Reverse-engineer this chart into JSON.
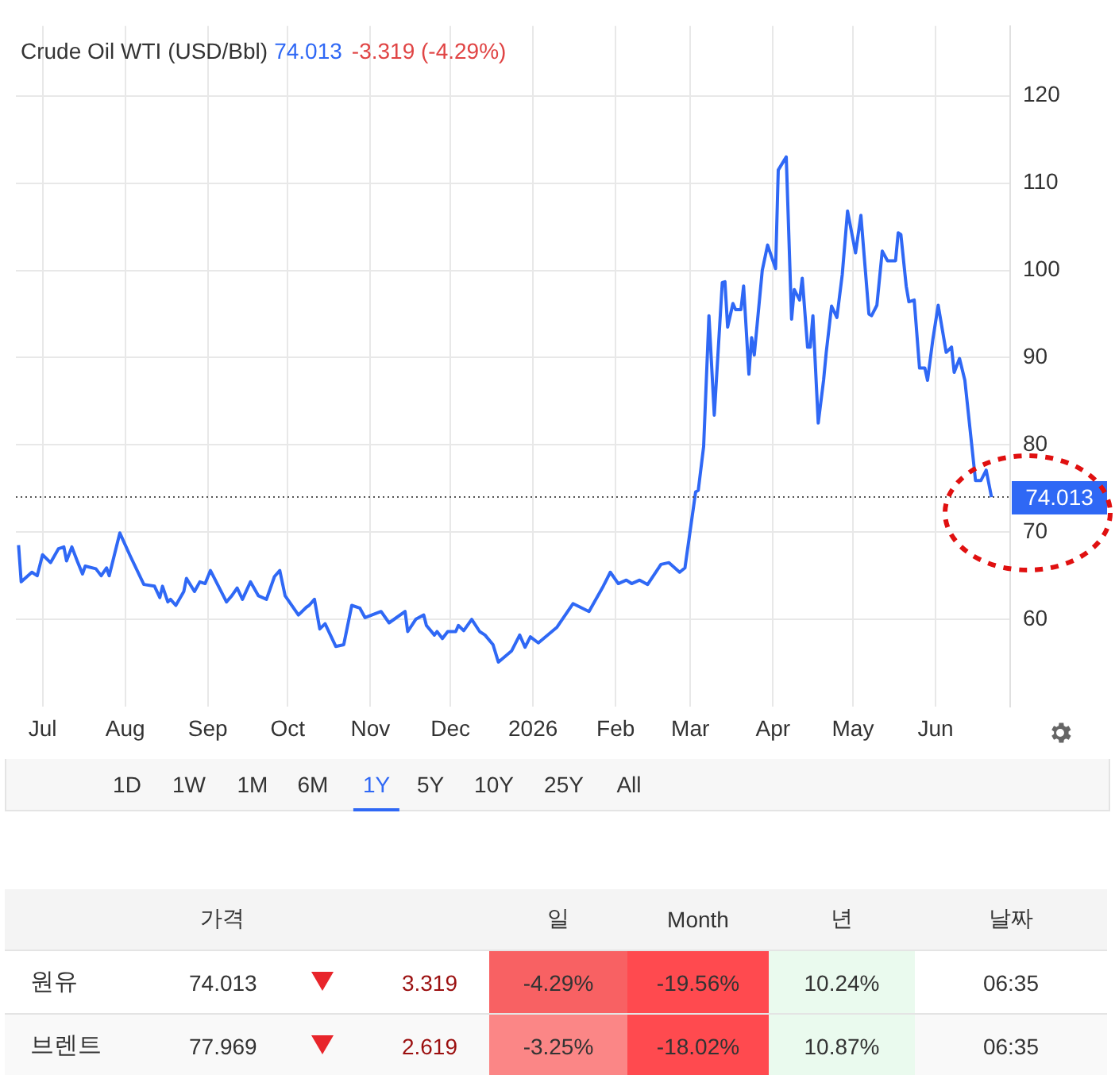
{
  "chart_data": {
    "type": "line",
    "title": "Crude Oil WTI (USD/Bbl)",
    "annotations": [
      "74.013",
      "-3.319 (-4.29%)",
      "1D",
      "1W",
      "1M",
      "6M",
      "1Y",
      "5Y",
      "10Y",
      "25Y",
      "All",
      "가격",
      "일",
      "Month",
      "년",
      "날짜",
      "원유",
      "74.013",
      "3.319",
      "-4.29%",
      "-19.56%",
      "10.24%",
      "06:35",
      "브렌트",
      "77.969",
      "2.619",
      "-3.25%",
      "-18.02%",
      "10.87%",
      "06:35"
    ],
    "x": [
      "2025-06-22",
      "2025-06-23",
      "2025-06-27",
      "2025-06-29",
      "2025-07-01",
      "2025-07-04",
      "2025-07-07",
      "2025-07-09",
      "2025-07-10",
      "2025-07-12",
      "2025-07-14",
      "2025-07-16",
      "2025-07-17",
      "2025-07-21",
      "2025-07-23",
      "2025-07-25",
      "2025-07-26",
      "2025-07-30",
      "2025-08-03",
      "2025-08-08",
      "2025-08-12",
      "2025-08-14",
      "2025-08-15",
      "2025-08-17",
      "2025-08-18",
      "2025-08-20",
      "2025-08-23",
      "2025-08-24",
      "2025-08-27",
      "2025-08-29",
      "2025-08-31",
      "2025-09-02",
      "2025-09-05",
      "2025-09-08",
      "2025-09-10",
      "2025-09-12",
      "2025-09-14",
      "2025-09-17",
      "2025-09-20",
      "2025-09-23",
      "2025-09-26",
      "2025-09-28",
      "2025-09-30",
      "2025-10-05",
      "2025-10-08",
      "2025-10-09",
      "2025-10-11",
      "2025-10-13",
      "2025-10-15",
      "2025-10-19",
      "2025-10-22",
      "2025-10-25",
      "2025-10-28",
      "2025-10-30",
      "2025-11-05",
      "2025-11-08",
      "2025-11-14",
      "2025-11-15",
      "2025-11-18",
      "2025-11-21",
      "2025-11-22",
      "2025-11-25",
      "2025-11-26",
      "2025-11-28",
      "2025-11-30",
      "2025-12-03",
      "2025-12-04",
      "2025-12-06",
      "2025-12-09",
      "2025-12-12",
      "2025-12-14",
      "2025-12-17",
      "2025-12-19",
      "2025-12-24",
      "2025-12-27",
      "2025-12-29",
      "2025-12-31",
      "2026-01-03",
      "2026-01-10",
      "2026-01-16",
      "2026-01-22",
      "2026-01-27",
      "2026-01-30",
      "2026-02-02",
      "2026-02-05",
      "2026-02-07",
      "2026-02-10",
      "2026-02-13",
      "2026-02-18",
      "2026-02-21",
      "2026-02-25",
      "2026-02-27",
      "2026-03-03",
      "2026-03-04",
      "2026-03-06",
      "2026-03-08",
      "2026-03-10",
      "2026-03-13",
      "2026-03-14",
      "2026-03-15",
      "2026-03-17",
      "2026-03-18",
      "2026-03-20",
      "2026-03-21",
      "2026-03-23",
      "2026-03-24",
      "2026-03-25",
      "2026-03-28",
      "2026-03-30",
      "2026-04-02",
      "2026-04-03",
      "2026-04-06",
      "2026-04-08",
      "2026-04-09",
      "2026-04-11",
      "2026-04-12",
      "2026-04-14",
      "2026-04-15",
      "2026-04-16",
      "2026-04-18",
      "2026-04-20",
      "2026-04-21",
      "2026-04-23",
      "2026-04-25",
      "2026-04-27",
      "2026-04-29",
      "2026-05-02",
      "2026-05-04",
      "2026-05-07",
      "2026-05-08",
      "2026-05-10",
      "2026-05-12",
      "2026-05-14",
      "2026-05-17",
      "2026-05-18",
      "2026-05-19",
      "2026-05-21",
      "2026-05-22",
      "2026-05-24",
      "2026-05-26",
      "2026-05-28",
      "2026-05-29",
      "2026-05-31",
      "2026-06-02",
      "2026-06-05",
      "2026-06-07",
      "2026-06-08",
      "2026-06-10",
      "2026-06-12",
      "2026-06-16",
      "2026-06-18",
      "2026-06-20",
      "2026-06-22"
    ],
    "values": [
      68.5,
      64.3,
      65.4,
      65.0,
      67.4,
      66.5,
      68.1,
      68.3,
      66.7,
      68.3,
      66.7,
      65.2,
      66.1,
      65.8,
      65.0,
      65.9,
      65.0,
      69.9,
      67.2,
      64.0,
      63.8,
      62.5,
      63.8,
      62.0,
      62.3,
      61.6,
      63.2,
      64.7,
      63.2,
      64.3,
      64.1,
      65.6,
      63.8,
      62.0,
      62.7,
      63.6,
      62.3,
      64.3,
      62.7,
      62.3,
      64.9,
      65.6,
      62.7,
      60.5,
      61.4,
      61.6,
      62.3,
      58.9,
      59.5,
      56.9,
      57.1,
      61.6,
      61.3,
      60.2,
      60.9,
      59.6,
      60.9,
      58.6,
      60.0,
      60.5,
      59.3,
      58.2,
      58.6,
      57.8,
      58.6,
      58.6,
      59.3,
      58.7,
      60.0,
      58.6,
      58.2,
      57.1,
      55.1,
      56.4,
      58.2,
      56.8,
      58.0,
      57.3,
      59.1,
      61.8,
      60.9,
      63.6,
      65.4,
      64.1,
      64.5,
      64.1,
      64.5,
      64.0,
      66.3,
      66.5,
      65.4,
      65.9,
      74.6,
      74.8,
      79.8,
      94.8,
      83.4,
      98.6,
      98.7,
      93.5,
      96.2,
      95.5,
      95.5,
      98.2,
      88.1,
      92.3,
      90.3,
      100.0,
      102.9,
      100.2,
      111.5,
      113.0,
      94.4,
      97.8,
      96.6,
      99.1,
      91.2,
      91.2,
      94.8,
      82.5,
      87.4,
      90.6,
      95.9,
      94.6,
      99.5,
      106.8,
      102.0,
      106.3,
      95.0,
      94.8,
      96.0,
      102.2,
      101.1,
      101.1,
      104.3,
      104.1,
      98.2,
      96.4,
      96.6,
      88.8,
      88.8,
      87.4,
      92.1,
      96.0,
      90.6,
      91.2,
      88.3,
      89.9,
      87.4,
      75.9,
      75.9,
      77.1,
      74.013
    ],
    "color": "#2f68f5",
    "xlim": [
      "2025-06-21",
      "2026-06-29"
    ],
    "xticks": [
      {
        "value": "2025-07-01",
        "label": "Jul"
      },
      {
        "value": "2025-08-01",
        "label": "Aug"
      },
      {
        "value": "2025-09-01",
        "label": "Sep"
      },
      {
        "value": "2025-10-01",
        "label": "Oct"
      },
      {
        "value": "2025-11-01",
        "label": "Nov"
      },
      {
        "value": "2025-12-01",
        "label": "Dec"
      },
      {
        "value": "2026-01-01",
        "label": "2026"
      },
      {
        "value": "2026-02-01",
        "label": "Feb"
      },
      {
        "value": "2026-03-01",
        "label": "Mar"
      },
      {
        "value": "2026-04-01",
        "label": "Apr"
      },
      {
        "value": "2026-05-01",
        "label": "May"
      },
      {
        "value": "2026-06-01",
        "label": "Jun"
      }
    ],
    "ylim": [
      50,
      128
    ],
    "yticks": [
      60,
      70,
      80,
      90,
      100,
      110,
      120
    ],
    "grid": true,
    "legend": false,
    "line_style": "solid",
    "ref_lines": [
      {
        "axis": "y",
        "value": 74.013,
        "label": "74.013",
        "color": "#555555",
        "line_style": "dotted"
      }
    ]
  }
}
